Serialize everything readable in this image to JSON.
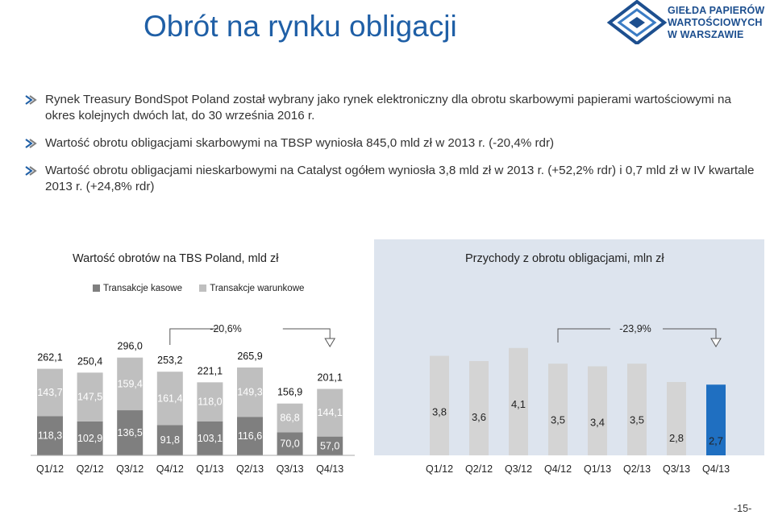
{
  "header": {
    "title": "Obrót na rynku obligacji",
    "logo_lines": [
      "GIEŁDA PAPIERÓW",
      "WARTOŚCIOWYCH",
      "W WARSZAWIE"
    ]
  },
  "bullets": [
    "Rynek Treasury BondSpot Poland został wybrany jako rynek elektroniczny dla obrotu skarbowymi papierami wartościowymi na okres kolejnych dwóch lat, do 30 września 2016 r.",
    "Wartość obrotu obligacjami skarbowymi na TBSP wyniosła 845,0 mld zł w 2013 r. (-20,4% rdr)",
    "Wartość obrotu obligacjami nieskarbowymi na Catalyst ogółem wyniosła 3,8 mld zł w 2013 r. (+52,2% rdr) i 0,7 mld zł w IV kwartale 2013 r. (+24,8% rdr)"
  ],
  "colors": {
    "title": "#1f5fa6",
    "cash": "#7f7f7f",
    "conditional": "#bfbfbf",
    "highlight": "#1f6fc1",
    "panel_bg": "#dde4ee"
  },
  "page_number": "-15-",
  "chart_data": [
    {
      "type": "bar",
      "stacked": true,
      "title": "Wartość obrotów na TBS Poland, mld zł",
      "categories": [
        "Q1/12",
        "Q2/12",
        "Q3/12",
        "Q4/12",
        "Q1/13",
        "Q2/13",
        "Q3/13",
        "Q4/13"
      ],
      "series": [
        {
          "name": "Transakcje kasowe",
          "values": [
            118.3,
            102.9,
            136.5,
            91.8,
            103.1,
            116.6,
            70.0,
            57.0
          ],
          "labels": [
            "118,3",
            "102,9",
            "136,5",
            "91,8",
            "103,1",
            "116,6",
            "70,0",
            "57,0"
          ]
        },
        {
          "name": "Transakcje warunkowe",
          "values": [
            143.7,
            147.5,
            159.4,
            161.4,
            118.0,
            149.3,
            86.8,
            144.1
          ],
          "labels": [
            "143,7",
            "147,5",
            "159,4",
            "161,4",
            "118,0",
            "149,3",
            "86,8",
            "144,1"
          ]
        }
      ],
      "totals": [
        "262,1",
        "250,4",
        "296,0",
        "253,2",
        "221,1",
        "265,9",
        "156,9",
        "201,1"
      ],
      "annotation": "-20,6%"
    },
    {
      "type": "bar",
      "title": "Przychody z obrotu obligacjami, mln zł",
      "categories": [
        "Q1/12",
        "Q2/12",
        "Q3/12",
        "Q4/12",
        "Q1/13",
        "Q2/13",
        "Q3/13",
        "Q4/13"
      ],
      "values": [
        3.8,
        3.6,
        4.1,
        3.5,
        3.4,
        3.5,
        2.8,
        2.7
      ],
      "labels": [
        "3,8",
        "3,6",
        "4,1",
        "3,5",
        "3,4",
        "3,5",
        "2,8",
        "2,7"
      ],
      "annotation": "-23,9%"
    }
  ]
}
